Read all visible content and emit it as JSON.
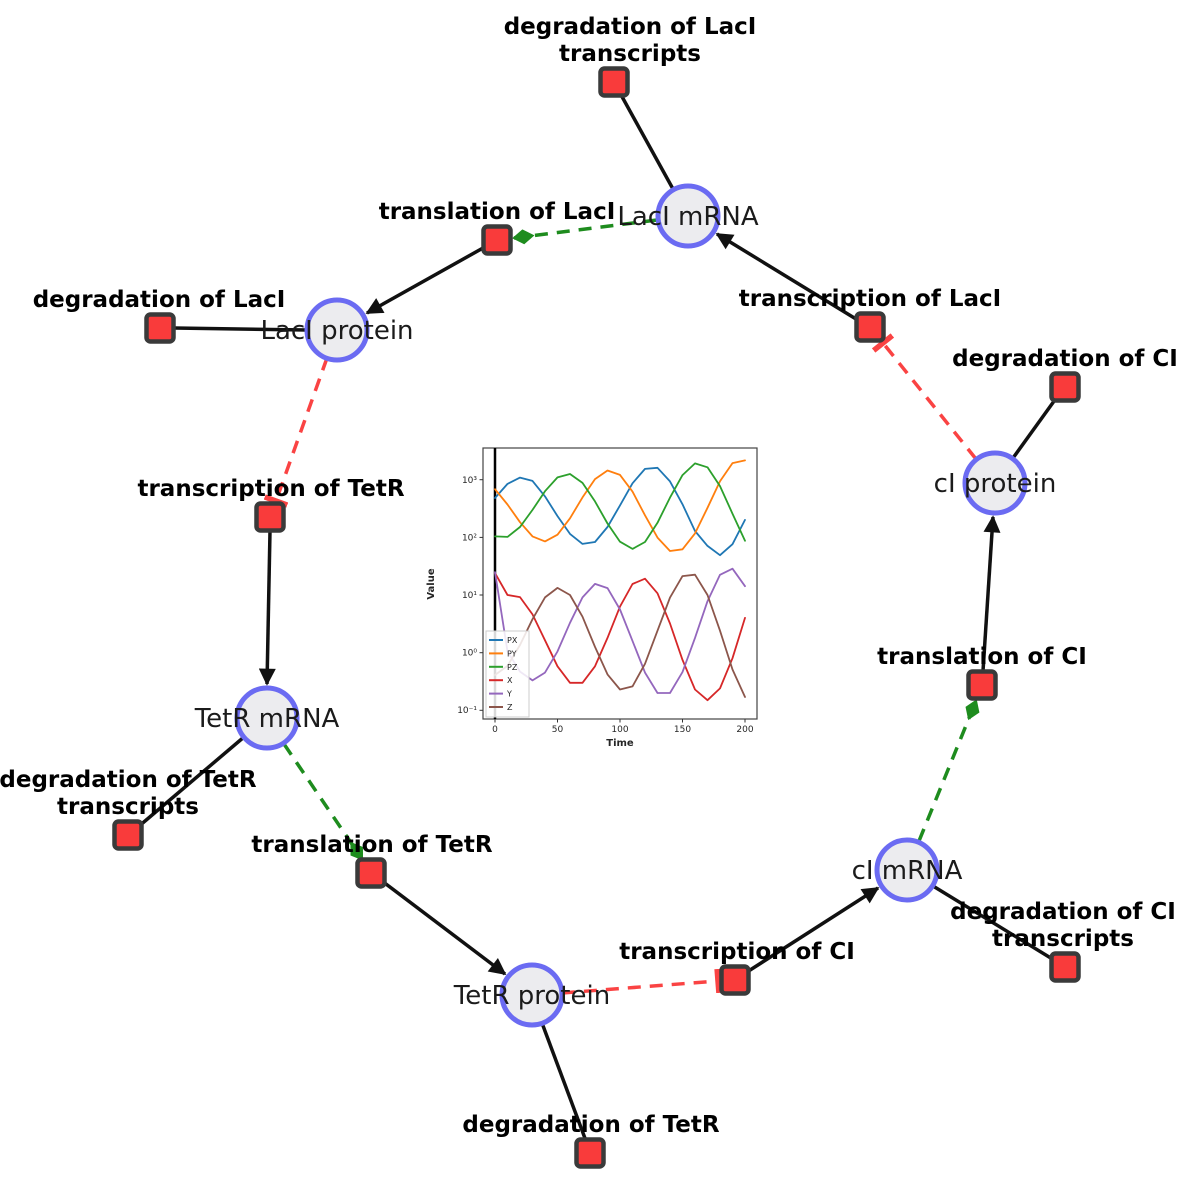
{
  "colors": {
    "species_fill": "#ececef",
    "species_stroke": "#6b6bf2",
    "reaction_fill": "#f93b3b",
    "reaction_stroke": "#3a3a3a",
    "edge_black": "#111111",
    "edge_modifier_green": "#1e8c1e",
    "edge_inhibitor_red": "#fa4343",
    "background": "#ffffff"
  },
  "network": {
    "species": [
      {
        "id": "laci-mrna",
        "label": "LacI mRNA"
      },
      {
        "id": "laci-protein",
        "label": "LacI protein"
      },
      {
        "id": "tetr-mrna",
        "label": "TetR mRNA"
      },
      {
        "id": "tetr-protein",
        "label": "TetR protein"
      },
      {
        "id": "ci-mrna",
        "label": "cI mRNA"
      },
      {
        "id": "ci-protein",
        "label": "cI protein"
      }
    ],
    "reactions": [
      {
        "id": "degradation-of-laci-transcripts",
        "label": "degradation of LacI",
        "label2": "transcripts"
      },
      {
        "id": "translation-of-laci",
        "label": "translation of LacI"
      },
      {
        "id": "degradation-of-laci",
        "label": "degradation of LacI"
      },
      {
        "id": "transcription-of-laci",
        "label": "transcription of LacI"
      },
      {
        "id": "degradation-of-ci",
        "label": "degradation of CI"
      },
      {
        "id": "transcription-of-tetr",
        "label": "transcription of TetR"
      },
      {
        "id": "translation-of-ci",
        "label": "translation of CI"
      },
      {
        "id": "degradation-of-tetr-transcripts",
        "label": "degradation of TetR",
        "label2": "transcripts"
      },
      {
        "id": "translation-of-tetr",
        "label": "translation of TetR"
      },
      {
        "id": "transcription-of-ci",
        "label": "transcription of CI"
      },
      {
        "id": "degradation-of-ci-transcripts",
        "label": "degradation of CI",
        "label2": "transcripts"
      },
      {
        "id": "degradation-of-tetr",
        "label": "degradation of TetR"
      }
    ],
    "edge_types": {
      "reactant": "black solid line, no arrowhead",
      "product": "black solid line, filled arrowhead into species",
      "modifier": "green dashed line, green arrowhead into reaction",
      "inhibitor": "red dashed line, red T-bar at reaction"
    }
  },
  "chart_data": {
    "type": "line",
    "title": "",
    "xlabel": "Time",
    "ylabel": "Value",
    "x_ticklabels": [
      "0",
      "50",
      "100",
      "150",
      "200"
    ],
    "y_ticklabels": [
      "10³",
      "10²",
      "10¹",
      "10⁰",
      "10⁻¹"
    ],
    "xlim": [
      -10,
      210
    ],
    "ylog": true,
    "ylim_log10": [
      -1.14,
      3.55
    ],
    "grid": false,
    "legend_position": "lower left",
    "axvline_x": 0,
    "x": [
      0,
      10,
      20,
      30,
      40,
      50,
      60,
      70,
      80,
      90,
      100,
      110,
      120,
      130,
      140,
      150,
      160,
      170,
      180,
      190,
      200
    ],
    "series": [
      {
        "name": "PX",
        "color": "#1f77b4",
        "values": [
          482,
          847,
          1086,
          954,
          513,
          234,
          115,
          77,
          83,
          151,
          359,
          866,
          1537,
          1606,
          936,
          374,
          129,
          71,
          49,
          76,
          201
        ]
      },
      {
        "name": "PY",
        "color": "#ff7f0e",
        "values": [
          684,
          372,
          183,
          104,
          85,
          111,
          214,
          493,
          1023,
          1447,
          1210,
          621,
          241,
          99,
          58,
          62,
          117,
          326,
          943,
          1944,
          2159
        ]
      },
      {
        "name": "PZ",
        "color": "#2ca02c",
        "values": [
          104,
          102,
          151,
          299,
          631,
          1096,
          1256,
          882,
          420,
          174,
          84,
          63,
          83,
          179,
          489,
          1202,
          1917,
          1640,
          776,
          257,
          87
        ]
      },
      {
        "name": "X",
        "color": "#d62728",
        "values": [
          24,
          10,
          9.2,
          4.6,
          1.64,
          0.58,
          0.3,
          0.3,
          0.58,
          1.8,
          6.3,
          15.5,
          19.2,
          10.7,
          3.2,
          0.75,
          0.23,
          0.15,
          0.24,
          0.8,
          4.0
        ]
      },
      {
        "name": "Y",
        "color": "#9467bd",
        "values": [
          25,
          1.05,
          0.47,
          0.33,
          0.45,
          1.05,
          3.3,
          9.1,
          15.6,
          13.2,
          5.6,
          1.6,
          0.45,
          0.2,
          0.2,
          0.46,
          1.8,
          7.8,
          22.4,
          28.6,
          14.2
        ]
      },
      {
        "name": "Z",
        "color": "#8c564b",
        "values": [
          0.41,
          0.59,
          1.36,
          3.8,
          9.1,
          13.3,
          10.0,
          4.2,
          1.26,
          0.42,
          0.23,
          0.26,
          0.64,
          2.4,
          9.0,
          21.3,
          22.5,
          10.0,
          2.4,
          0.51,
          0.17
        ]
      }
    ]
  }
}
